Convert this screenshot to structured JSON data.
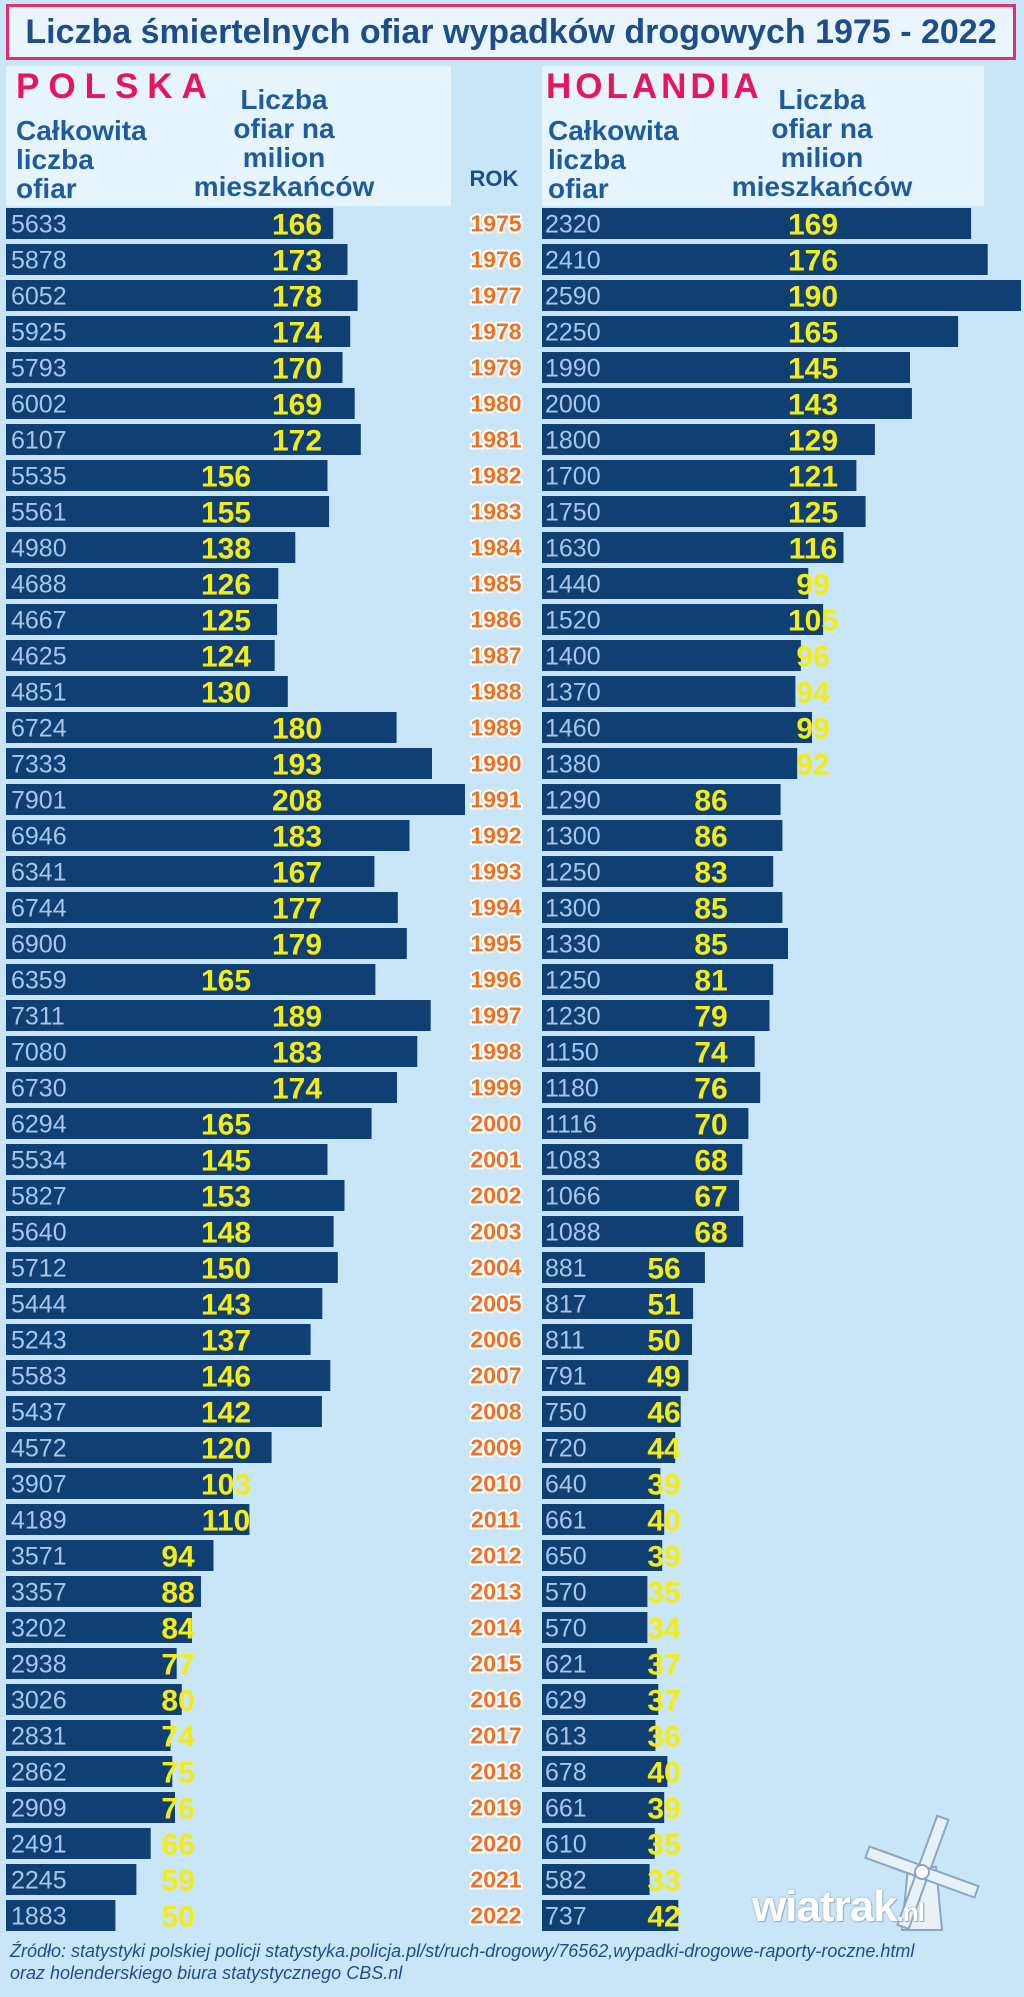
{
  "title": "Liczba śmiertelnych ofiar wypadków drogowych 1975 - 2022",
  "poland": {
    "country": "POLSKA",
    "total_label": "Całkowita\nliczba\nofiar",
    "rate_label": "Liczba\nofiar na\nmilion\nmieszkańców"
  },
  "netherlands": {
    "country": "HOLANDIA",
    "total_label": "Całkowita\nliczba\nofiar",
    "rate_label": "Liczba\nofiar na\nmilion\nmieszkańców"
  },
  "year_label": "ROK",
  "source": "Źródło: statystyki polskiej policji statystyka.policja.pl/st/ruch-drogowy/76562,wypadki-drogowe-raporty-roczne.html\noraz holenderskiego biura statystycznego CBS.nl",
  "logo": {
    "text": "wiatrak",
    "suffix": ".nl",
    "icon": "windmill-icon"
  },
  "colors": {
    "bar": "#0f3f73",
    "rate_text": "#f4ec13",
    "year_text": "#f07021",
    "country": "#e8155e",
    "background": "#c9e6f8"
  },
  "chart_data": {
    "type": "bar",
    "orientation": "horizontal",
    "categories": [
      "1975",
      "1976",
      "1977",
      "1978",
      "1979",
      "1980",
      "1981",
      "1982",
      "1983",
      "1984",
      "1985",
      "1986",
      "1987",
      "1988",
      "1989",
      "1990",
      "1991",
      "1992",
      "1993",
      "1994",
      "1995",
      "1996",
      "1997",
      "1998",
      "1999",
      "2000",
      "2001",
      "2002",
      "2003",
      "2004",
      "2005",
      "2006",
      "2007",
      "2008",
      "2009",
      "2010",
      "2011",
      "2012",
      "2013",
      "2014",
      "2015",
      "2016",
      "2017",
      "2018",
      "2019",
      "2020",
      "2021",
      "2022"
    ],
    "series": [
      {
        "name": "POLSKA",
        "totals": [
          5633,
          5878,
          6052,
          5925,
          5793,
          6002,
          6107,
          5535,
          5561,
          4980,
          4688,
          4667,
          4625,
          4851,
          6724,
          7333,
          7901,
          6946,
          6341,
          6744,
          6900,
          6359,
          7311,
          7080,
          6730,
          6294,
          5534,
          5827,
          5640,
          5712,
          5444,
          5243,
          5583,
          5437,
          4572,
          3907,
          4189,
          3571,
          3357,
          3202,
          2938,
          3026,
          2831,
          2862,
          2909,
          2491,
          2245,
          1883
        ],
        "rates": [
          166,
          173,
          178,
          174,
          170,
          169,
          172,
          156,
          155,
          138,
          126,
          125,
          124,
          130,
          180,
          193,
          208,
          183,
          167,
          177,
          179,
          165,
          189,
          183,
          174,
          165,
          145,
          153,
          148,
          150,
          143,
          137,
          146,
          142,
          120,
          103,
          110,
          94,
          88,
          84,
          77,
          80,
          74,
          75,
          76,
          66,
          59,
          50
        ]
      },
      {
        "name": "HOLANDIA",
        "totals": [
          2320,
          2410,
          2590,
          2250,
          1990,
          2000,
          1800,
          1700,
          1750,
          1630,
          1440,
          1520,
          1400,
          1370,
          1460,
          1380,
          1290,
          1300,
          1250,
          1300,
          1330,
          1250,
          1230,
          1150,
          1180,
          1116,
          1083,
          1066,
          1088,
          881,
          817,
          811,
          791,
          750,
          720,
          640,
          661,
          650,
          570,
          570,
          621,
          629,
          613,
          678,
          661,
          610,
          582,
          737
        ],
        "rates": [
          169,
          176,
          190,
          165,
          145,
          143,
          129,
          121,
          125,
          116,
          99,
          105,
          96,
          94,
          99,
          92,
          86,
          86,
          83,
          85,
          85,
          81,
          79,
          74,
          76,
          70,
          68,
          67,
          68,
          56,
          51,
          50,
          49,
          46,
          44,
          39,
          40,
          39,
          35,
          34,
          37,
          37,
          36,
          40,
          39,
          35,
          33,
          42
        ]
      }
    ]
  }
}
